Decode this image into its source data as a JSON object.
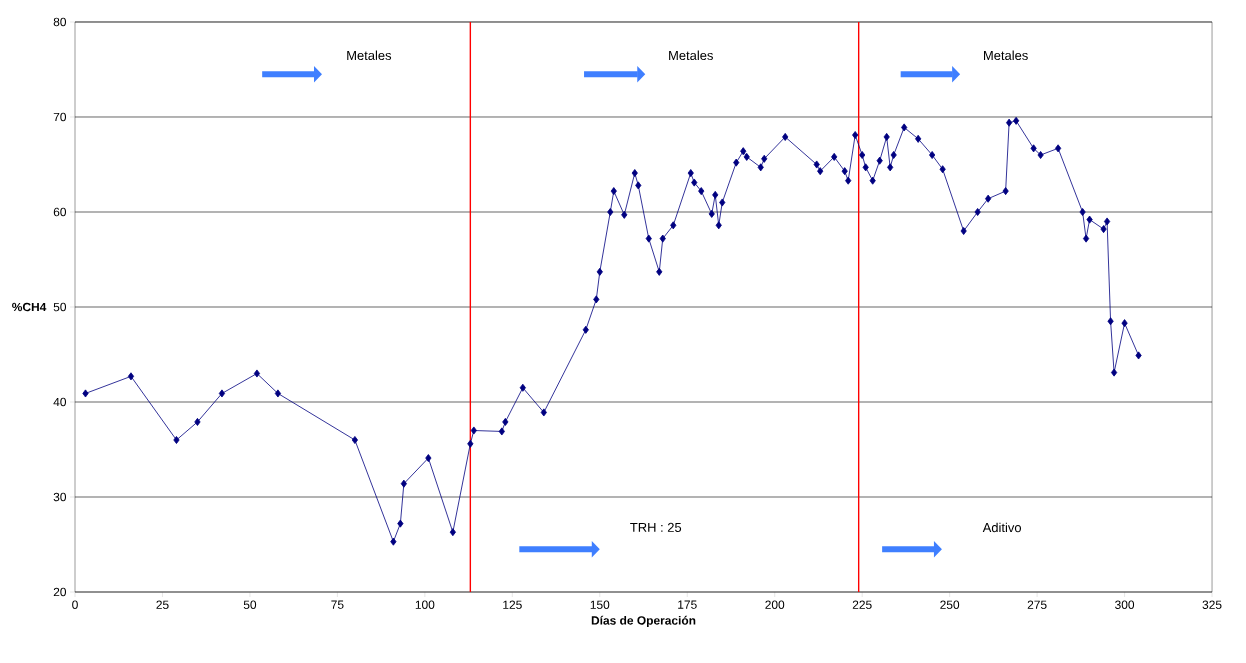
{
  "chart_data": {
    "type": "line",
    "xlabel": "Días de Operación",
    "ylabel": "%CH4",
    "x": [
      3,
      16,
      29,
      35,
      42,
      52,
      58,
      80,
      91,
      93,
      94,
      101,
      108,
      113,
      114,
      122,
      123,
      128,
      134,
      146,
      149,
      150,
      153,
      154,
      157,
      160,
      161,
      164,
      167,
      168,
      171,
      176,
      177,
      179,
      182,
      183,
      184,
      185,
      189,
      191,
      192,
      196,
      197,
      203,
      212,
      213,
      217,
      220,
      221,
      223,
      225,
      226,
      228,
      230,
      232,
      233,
      234,
      237,
      241,
      245,
      248,
      254,
      258,
      261,
      266,
      267,
      269,
      274,
      276,
      281,
      288,
      289,
      290,
      294,
      295,
      296,
      297,
      300,
      304
    ],
    "series": [
      {
        "color": "#000080",
        "values": [
          40.9,
          42.7,
          36,
          37.9,
          40.9,
          43,
          40.9,
          36,
          25.3,
          27.2,
          31.4,
          34.1,
          26.3,
          35.6,
          37,
          36.9,
          37.9,
          41.5,
          38.9,
          47.6,
          50.8,
          53.7,
          60,
          62.2,
          59.7,
          64.1,
          62.8,
          57.2,
          53.7,
          57.2,
          58.6,
          64.1,
          63.1,
          62.2,
          59.8,
          61.8,
          58.6,
          61,
          65.2,
          66.4,
          65.8,
          64.7,
          65.6,
          67.9,
          65,
          64.3,
          65.8,
          64.3,
          63.3,
          68.1,
          66,
          64.7,
          63.3,
          65.4,
          67.9,
          64.7,
          66,
          68.9,
          67.7,
          66,
          64.5,
          58,
          60,
          61.4,
          62.2,
          69.4,
          69.6,
          66.7,
          66,
          66.7,
          60,
          57.2,
          59.2,
          58.2,
          59,
          48.5,
          43.1,
          48.3,
          44.9
        ]
      }
    ],
    "xlim": [
      0,
      325
    ],
    "xticks": [
      0,
      25,
      50,
      75,
      100,
      125,
      150,
      175,
      200,
      225,
      250,
      275,
      300,
      325
    ],
    "ylim": [
      20,
      80
    ],
    "yticks": [
      20,
      30,
      40,
      50,
      60,
      70,
      80
    ],
    "grid": "y",
    "marker": "diamond",
    "line_style": "solid",
    "ref_lines": [
      {
        "axis": "x",
        "value": 113,
        "color": "#ff0000"
      },
      {
        "axis": "x",
        "value": 224,
        "color": "#ff0000"
      }
    ],
    "annotations": [
      "Metales",
      "Metales",
      "Metales",
      "TRH : 25",
      "Aditivo"
    ]
  }
}
